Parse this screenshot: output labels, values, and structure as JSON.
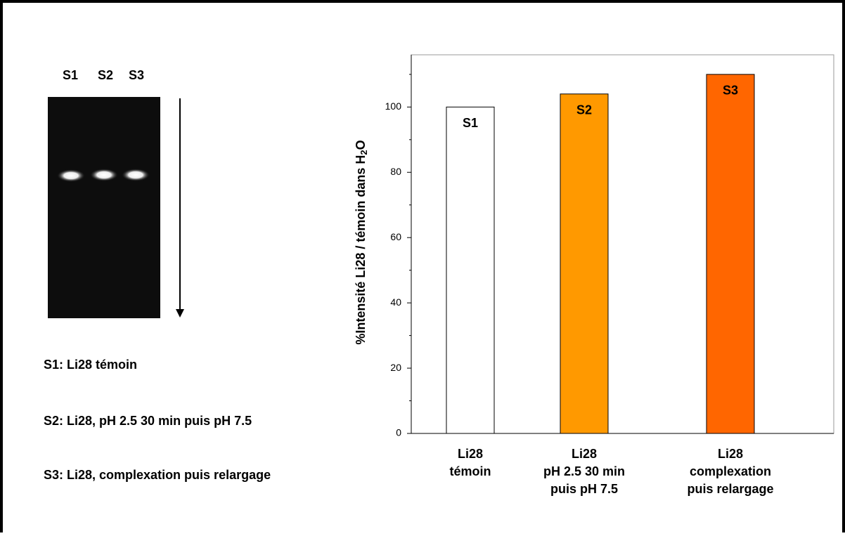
{
  "gel": {
    "lanes": [
      "S1",
      "S2",
      "S3"
    ]
  },
  "legend_items": [
    "S1: Li28 témoin",
    "S2: Li28, pH 2.5 30 min puis pH 7.5",
    "S3: Li28, complexation puis relargage"
  ],
  "chart_data": {
    "type": "bar",
    "ylabel_parts": [
      "%Intensité  Li28 / témoin dans H",
      "2",
      "O"
    ],
    "categories": [
      [
        "Li28",
        "témoin"
      ],
      [
        "Li28",
        "pH 2.5 30 min",
        "puis pH 7.5"
      ],
      [
        "Li28",
        "complexation",
        "puis relargage"
      ]
    ],
    "values": [
      100,
      104,
      110
    ],
    "value_labels": [
      "S1",
      "S2",
      "S3"
    ],
    "colors": [
      "#ffffff",
      "#ff9900",
      "#ff6600"
    ],
    "ylim": [
      0,
      116
    ],
    "yticks": [
      0,
      20,
      40,
      60,
      80,
      100
    ]
  }
}
